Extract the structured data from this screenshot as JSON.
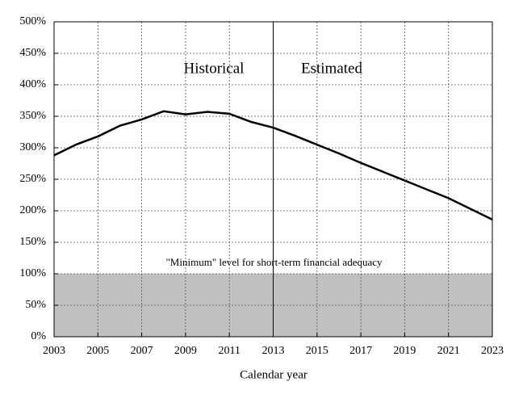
{
  "chart_data": {
    "type": "line",
    "x_label": "Calendar year",
    "x": [
      2003,
      2004,
      2005,
      2006,
      2007,
      2008,
      2009,
      2010,
      2011,
      2012,
      2013,
      2014,
      2015,
      2016,
      2017,
      2018,
      2019,
      2020,
      2021,
      2022,
      2023
    ],
    "values": [
      288,
      305,
      318,
      335,
      345,
      358,
      353,
      357,
      354,
      341,
      332,
      319,
      305,
      291,
      276,
      262,
      248,
      234,
      220,
      203,
      186
    ],
    "color": "#000000",
    "xlim": [
      2003,
      2023
    ],
    "xticks": [
      2003,
      2005,
      2007,
      2009,
      2011,
      2013,
      2015,
      2017,
      2019,
      2021,
      2023
    ],
    "ylim": [
      0,
      500
    ],
    "yticks": [
      {
        "value": 0,
        "label": "0%"
      },
      {
        "value": 50,
        "label": "50%"
      },
      {
        "value": 100,
        "label": "100%"
      },
      {
        "value": 150,
        "label": "150%"
      },
      {
        "value": 200,
        "label": "200%"
      },
      {
        "value": 250,
        "label": "250%"
      },
      {
        "value": 300,
        "label": "300%"
      },
      {
        "value": 350,
        "label": "350%"
      },
      {
        "value": 400,
        "label": "400%"
      },
      {
        "value": 450,
        "label": "450%"
      },
      {
        "value": 500,
        "label": "500%"
      }
    ],
    "grid": true,
    "threshold": 100,
    "threshold_color": "#c0c0c0",
    "threshold_label": "\"Minimum\" level for short-term financial adequacy",
    "divider_x": 2013,
    "left_label": "Historical",
    "right_label": "Estimated"
  }
}
